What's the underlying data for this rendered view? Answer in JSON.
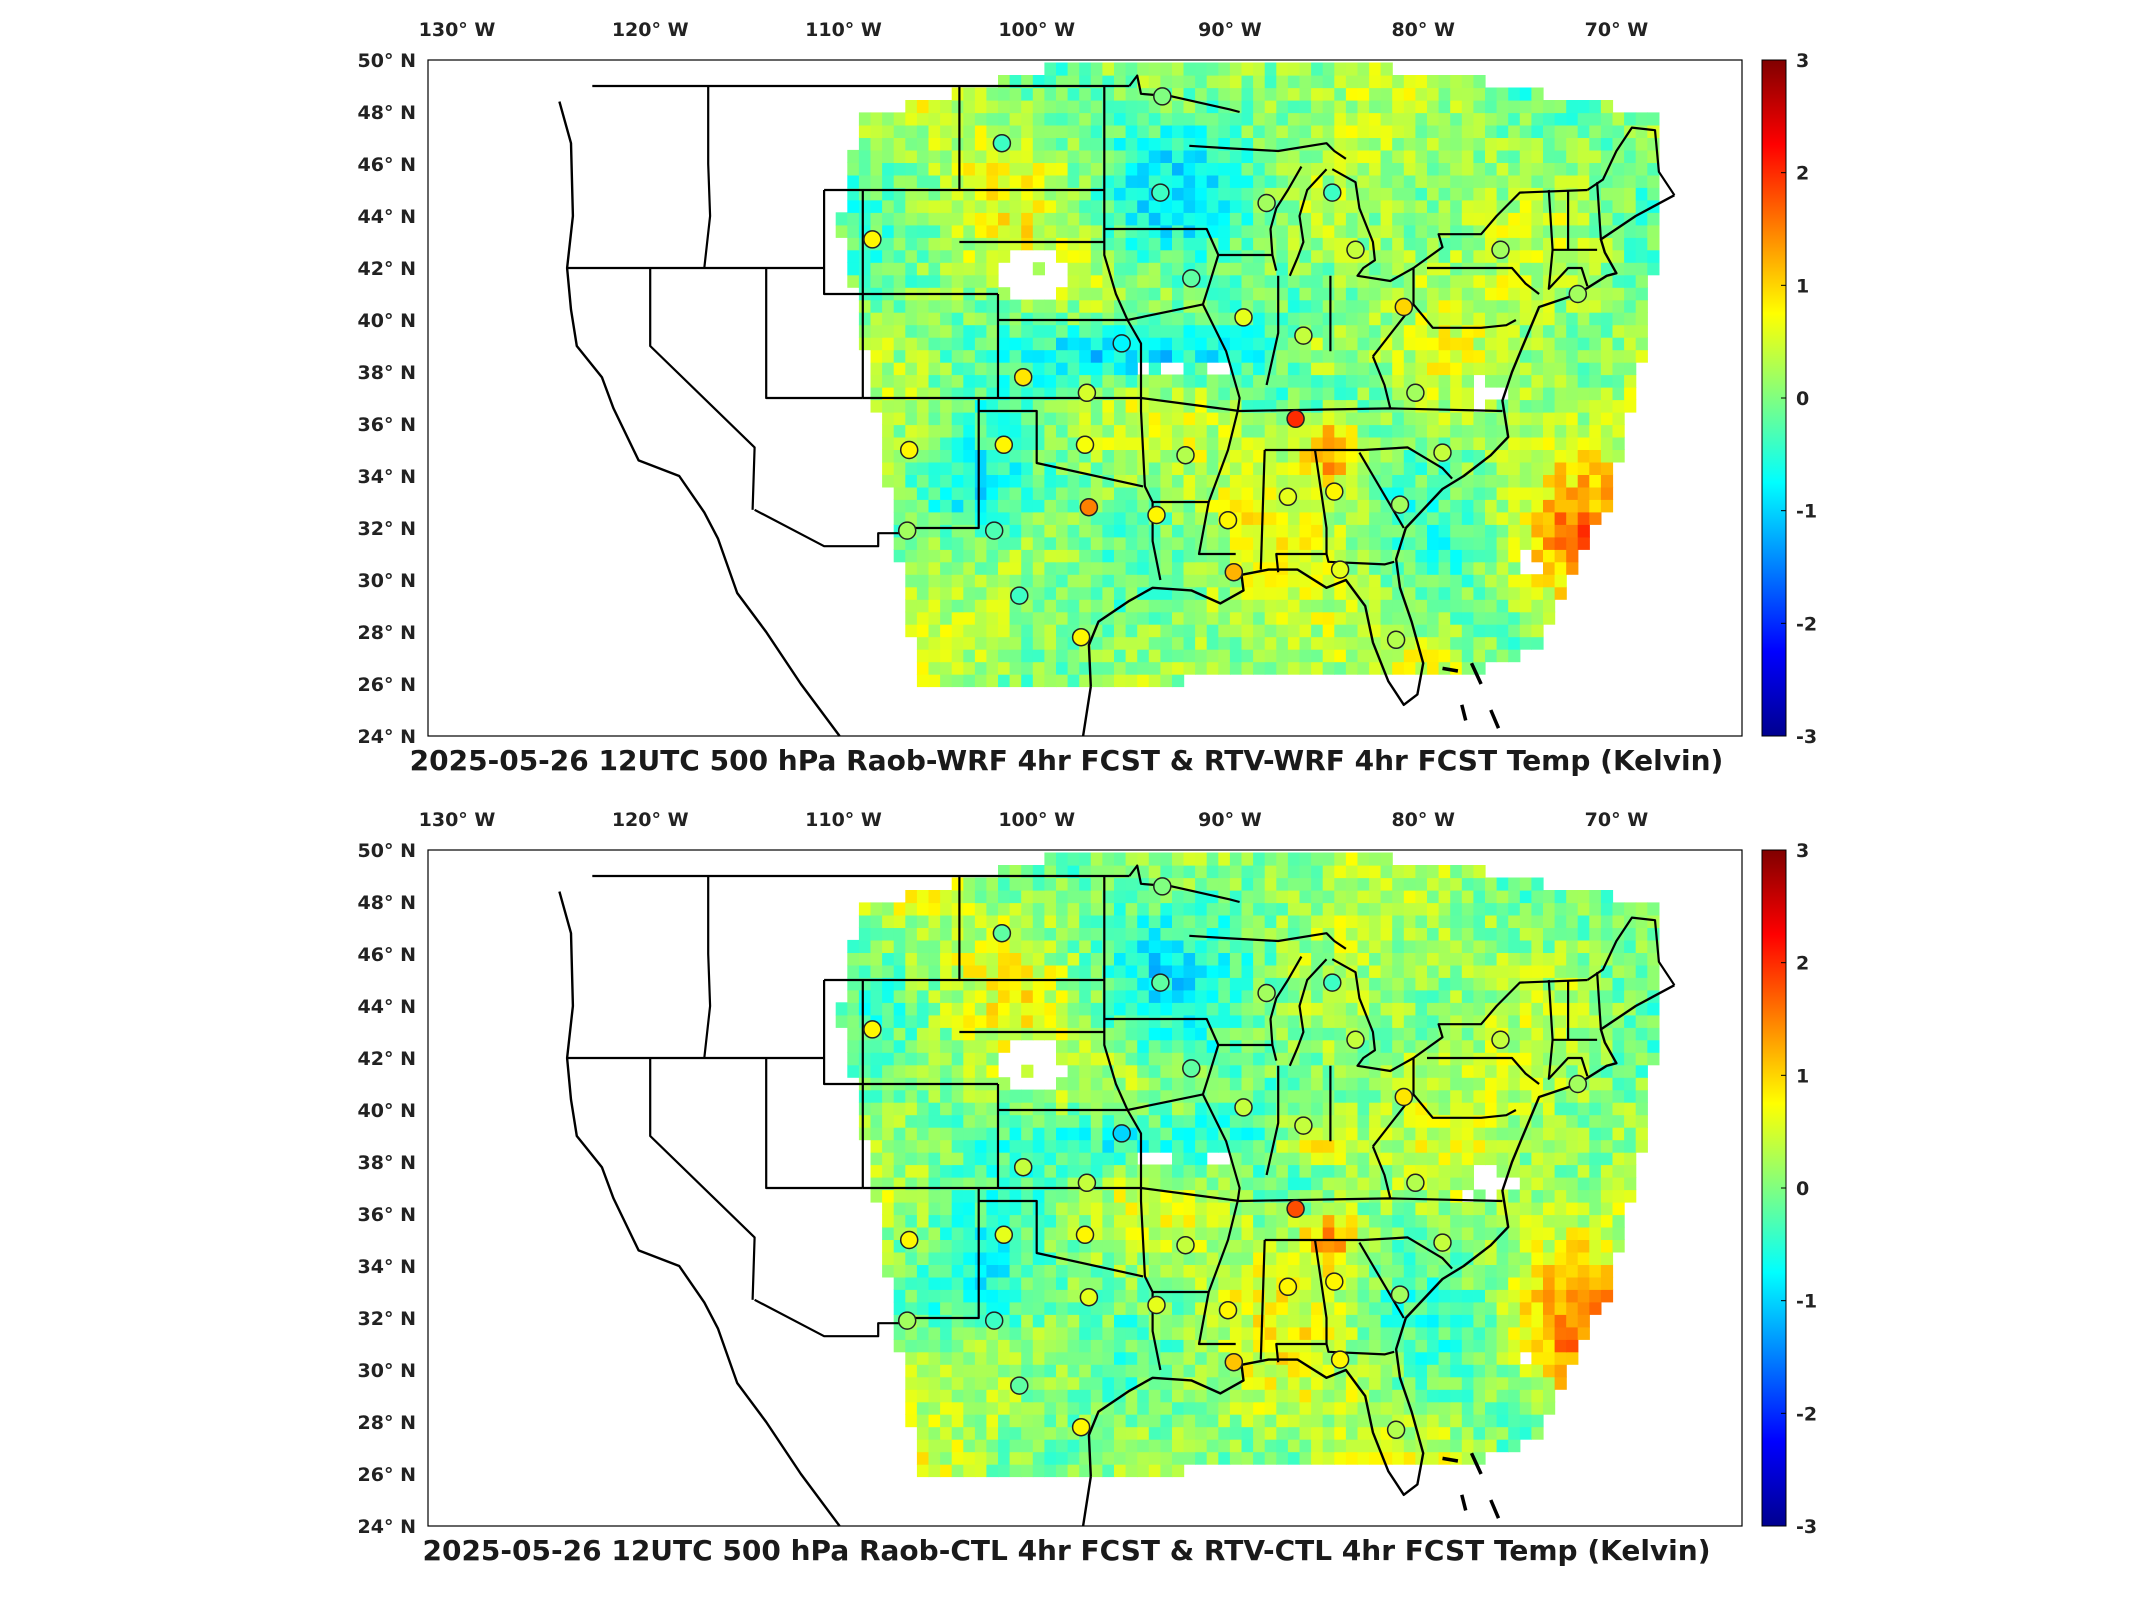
{
  "colorbar": {
    "min": -3,
    "max": 3,
    "ticks": [
      "3",
      "2",
      "1",
      "0",
      "-1",
      "-2",
      "-3"
    ],
    "colors": [
      "#00008f",
      "#0000ff",
      "#0080ff",
      "#00ffff",
      "#80ff80",
      "#ffff00",
      "#ff8000",
      "#ff0000",
      "#800000"
    ]
  },
  "axes": {
    "lon_labels": [
      "130° W",
      "120° W",
      "110° W",
      "100° W",
      "90° W",
      "80° W",
      "70° W"
    ],
    "lat_labels": [
      "50° N",
      "48° N",
      "46° N",
      "44° N",
      "42° N",
      "40° N",
      "38° N",
      "36° N",
      "34° N",
      "32° N",
      "30° N",
      "28° N",
      "26° N",
      "24° N"
    ]
  },
  "panels": [
    {
      "id": "top",
      "title": "2025-05-26 12UTC 500 hPa Raob-WRF 4hr FCST & RTV-WRF 4hr FCST Temp (Kelvin)",
      "stations": [
        {
          "lon": -93.5,
          "lat": 48.6,
          "value": 0.0
        },
        {
          "lon": -101.8,
          "lat": 46.8,
          "value": -0.4
        },
        {
          "lon": -93.6,
          "lat": 44.9,
          "value": -0.4
        },
        {
          "lon": -88.1,
          "lat": 44.5,
          "value": 0.2
        },
        {
          "lon": -84.7,
          "lat": 44.9,
          "value": -0.4
        },
        {
          "lon": -83.5,
          "lat": 42.7,
          "value": 0.4
        },
        {
          "lon": -76.0,
          "lat": 42.7,
          "value": 0.2
        },
        {
          "lon": -108.5,
          "lat": 43.1,
          "value": 0.8
        },
        {
          "lon": -92.0,
          "lat": 41.6,
          "value": -0.2
        },
        {
          "lon": -89.3,
          "lat": 40.1,
          "value": 0.6
        },
        {
          "lon": -81.0,
          "lat": 40.5,
          "value": 1.0
        },
        {
          "lon": -95.6,
          "lat": 39.1,
          "value": -0.8
        },
        {
          "lon": -86.2,
          "lat": 39.4,
          "value": 0.4
        },
        {
          "lon": -100.7,
          "lat": 37.8,
          "value": 0.9
        },
        {
          "lon": -97.4,
          "lat": 37.2,
          "value": 0.5
        },
        {
          "lon": -86.6,
          "lat": 36.2,
          "value": 2.0
        },
        {
          "lon": -80.4,
          "lat": 37.2,
          "value": 0.2
        },
        {
          "lon": -106.6,
          "lat": 35.0,
          "value": 0.8
        },
        {
          "lon": -101.7,
          "lat": 35.2,
          "value": 0.8
        },
        {
          "lon": -97.5,
          "lat": 35.2,
          "value": 0.7
        },
        {
          "lon": -92.3,
          "lat": 34.8,
          "value": 0.3
        },
        {
          "lon": -84.6,
          "lat": 33.4,
          "value": 0.8
        },
        {
          "lon": -87.0,
          "lat": 33.2,
          "value": 0.6
        },
        {
          "lon": -79.0,
          "lat": 34.9,
          "value": 0.4
        },
        {
          "lon": -97.3,
          "lat": 32.8,
          "value": 1.5
        },
        {
          "lon": -93.8,
          "lat": 32.5,
          "value": 0.8
        },
        {
          "lon": -90.1,
          "lat": 32.3,
          "value": 0.8
        },
        {
          "lon": -106.7,
          "lat": 31.9,
          "value": 0.2
        },
        {
          "lon": -102.2,
          "lat": 31.9,
          "value": -0.3
        },
        {
          "lon": -81.2,
          "lat": 32.9,
          "value": 0.2
        },
        {
          "lon": -100.9,
          "lat": 29.4,
          "value": -0.4
        },
        {
          "lon": -89.8,
          "lat": 30.3,
          "value": 1.2
        },
        {
          "lon": -84.3,
          "lat": 30.4,
          "value": 0.6
        },
        {
          "lon": -97.7,
          "lat": 27.8,
          "value": 0.8
        },
        {
          "lon": -81.4,
          "lat": 27.7,
          "value": 0.3
        },
        {
          "lon": -72.0,
          "lat": 41.0,
          "value": 0.2
        }
      ]
    },
    {
      "id": "bottom",
      "title": "2025-05-26 12UTC 500 hPa Raob-CTL 4hr FCST & RTV-CTL 4hr FCST Temp (Kelvin)",
      "stations": [
        {
          "lon": -93.5,
          "lat": 48.6,
          "value": 0.0
        },
        {
          "lon": -101.8,
          "lat": 46.8,
          "value": -0.2
        },
        {
          "lon": -93.6,
          "lat": 44.9,
          "value": -0.2
        },
        {
          "lon": -88.1,
          "lat": 44.5,
          "value": 0.2
        },
        {
          "lon": -84.7,
          "lat": 44.9,
          "value": -0.4
        },
        {
          "lon": -83.5,
          "lat": 42.7,
          "value": 0.4
        },
        {
          "lon": -76.0,
          "lat": 42.7,
          "value": 0.4
        },
        {
          "lon": -108.5,
          "lat": 43.1,
          "value": 0.8
        },
        {
          "lon": -92.0,
          "lat": 41.6,
          "value": -0.2
        },
        {
          "lon": -89.3,
          "lat": 40.1,
          "value": 0.4
        },
        {
          "lon": -81.0,
          "lat": 40.5,
          "value": 0.9
        },
        {
          "lon": -95.6,
          "lat": 39.1,
          "value": -1.0
        },
        {
          "lon": -86.2,
          "lat": 39.4,
          "value": 0.4
        },
        {
          "lon": -100.7,
          "lat": 37.8,
          "value": 0.4
        },
        {
          "lon": -97.4,
          "lat": 37.2,
          "value": 0.4
        },
        {
          "lon": -86.6,
          "lat": 36.2,
          "value": 1.8
        },
        {
          "lon": -80.4,
          "lat": 37.2,
          "value": 0.3
        },
        {
          "lon": -106.6,
          "lat": 35.0,
          "value": 0.8
        },
        {
          "lon": -101.7,
          "lat": 35.2,
          "value": 0.6
        },
        {
          "lon": -97.5,
          "lat": 35.2,
          "value": 0.8
        },
        {
          "lon": -92.3,
          "lat": 34.8,
          "value": 0.4
        },
        {
          "lon": -84.6,
          "lat": 33.4,
          "value": 0.8
        },
        {
          "lon": -87.0,
          "lat": 33.2,
          "value": 0.8
        },
        {
          "lon": -79.0,
          "lat": 34.9,
          "value": 0.4
        },
        {
          "lon": -97.3,
          "lat": 32.8,
          "value": 0.6
        },
        {
          "lon": -93.8,
          "lat": 32.5,
          "value": 0.6
        },
        {
          "lon": -90.1,
          "lat": 32.3,
          "value": 0.8
        },
        {
          "lon": -106.7,
          "lat": 31.9,
          "value": 0.2
        },
        {
          "lon": -102.2,
          "lat": 31.9,
          "value": -0.4
        },
        {
          "lon": -81.2,
          "lat": 32.9,
          "value": 0.2
        },
        {
          "lon": -100.9,
          "lat": 29.4,
          "value": -0.2
        },
        {
          "lon": -89.8,
          "lat": 30.3,
          "value": 1.1
        },
        {
          "lon": -84.3,
          "lat": 30.4,
          "value": 0.8
        },
        {
          "lon": -97.7,
          "lat": 27.8,
          "value": 0.8
        },
        {
          "lon": -81.4,
          "lat": 27.7,
          "value": 0.3
        },
        {
          "lon": -72.0,
          "lat": 41.0,
          "value": 0.2
        }
      ]
    }
  ]
}
